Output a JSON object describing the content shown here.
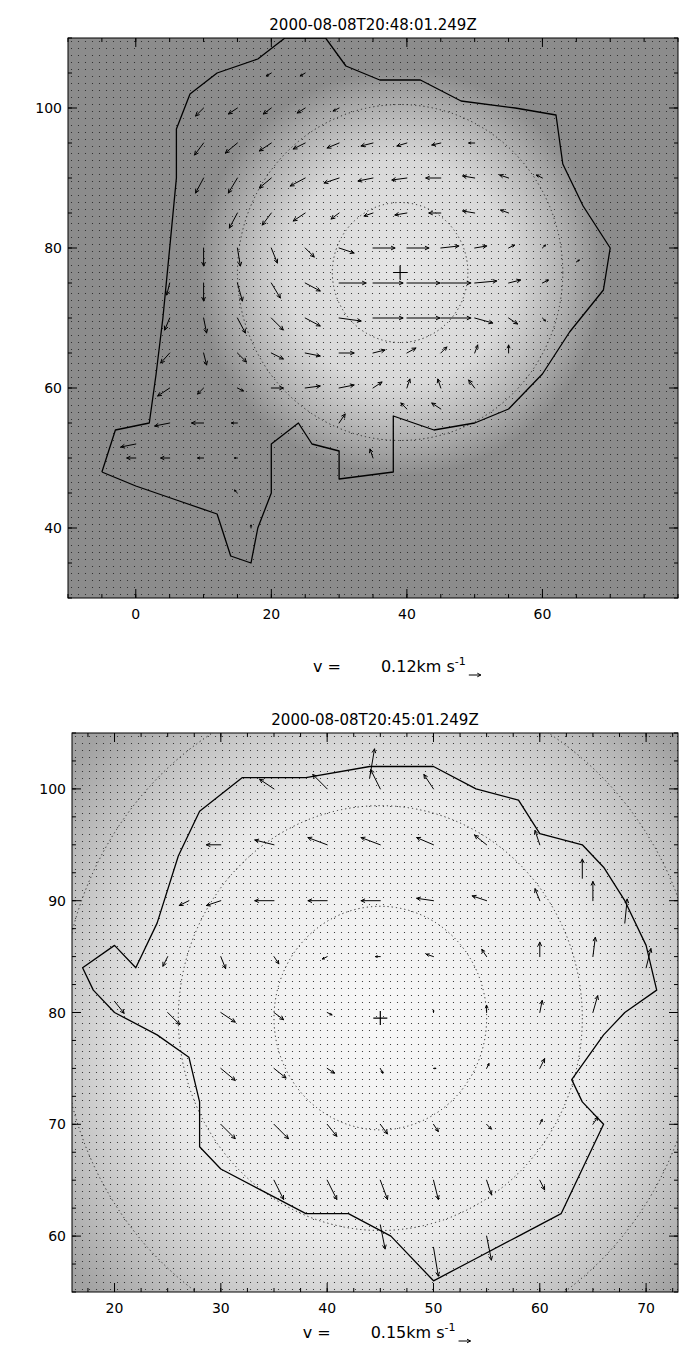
{
  "chart_data": [
    {
      "type": "quiver",
      "title": "2000-08-08T20:48:01.249Z",
      "xlim": [
        -10,
        80
      ],
      "ylim": [
        30,
        110
      ],
      "xticks": [
        0,
        20,
        40,
        60
      ],
      "yticks": [
        40,
        60,
        80,
        100
      ],
      "center": {
        "x": 39,
        "y": 76.5
      },
      "circle_radii": [
        10,
        24
      ],
      "boundary": {
        "x": [
          -5,
          -3,
          2,
          3,
          4,
          5,
          6,
          6,
          8,
          12,
          18,
          22,
          28,
          31,
          36,
          42,
          48,
          56,
          62,
          63,
          66,
          70,
          69,
          64,
          60,
          55,
          50,
          44,
          38,
          38,
          30,
          30,
          26,
          24,
          20,
          20,
          18,
          17,
          14,
          12,
          6,
          0,
          -5
        ],
        "y": [
          48,
          54,
          55,
          62,
          70,
          80,
          90,
          97,
          102,
          105,
          107,
          110,
          110,
          106,
          104,
          104,
          101,
          100,
          99,
          92,
          86,
          80,
          74,
          68,
          62,
          57,
          55,
          54,
          56,
          48,
          47,
          51,
          52,
          55,
          52,
          45,
          40,
          35,
          36,
          42,
          44,
          46,
          48
        ]
      },
      "vectors": {
        "x": [
          30,
          35,
          40,
          45,
          50,
          30,
          35,
          40,
          45,
          50,
          30,
          35,
          40,
          45,
          15,
          20,
          25,
          30,
          35,
          40,
          45,
          50,
          55,
          10,
          15,
          20,
          25,
          30,
          35,
          40,
          45,
          50,
          55,
          60,
          10,
          15,
          20,
          25,
          30,
          35,
          40,
          45,
          50,
          10,
          15,
          20,
          25,
          30,
          20,
          25,
          10,
          15,
          20,
          25,
          5,
          10,
          15,
          20,
          25,
          5,
          10,
          15,
          20,
          25,
          5,
          10,
          15,
          20,
          25,
          30,
          35,
          40,
          45,
          50,
          55,
          5,
          10,
          15,
          20,
          25,
          30,
          35,
          40,
          45,
          50,
          0,
          5,
          10,
          15,
          30,
          40,
          45,
          0,
          5,
          10,
          15,
          35,
          15,
          17,
          50,
          55,
          60,
          55,
          60,
          65,
          55,
          60
        ],
        "y": [
          75,
          75,
          75,
          75,
          75,
          70,
          70,
          70,
          70,
          70,
          80,
          80,
          80,
          80,
          85,
          85,
          85,
          85,
          85,
          85,
          85,
          85,
          85,
          90,
          90,
          90,
          90,
          90,
          90,
          90,
          90,
          90,
          90,
          90,
          95,
          95,
          95,
          95,
          95,
          95,
          95,
          95,
          95,
          100,
          100,
          100,
          100,
          100,
          105,
          105,
          80,
          80,
          80,
          80,
          75,
          75,
          75,
          75,
          75,
          70,
          70,
          70,
          70,
          70,
          65,
          65,
          65,
          65,
          65,
          65,
          65,
          65,
          65,
          65,
          65,
          60,
          60,
          60,
          60,
          60,
          60,
          60,
          60,
          60,
          60,
          52,
          55,
          55,
          55,
          55,
          57,
          57,
          50,
          50,
          50,
          50,
          50,
          45,
          40,
          80,
          80,
          80,
          75,
          75,
          78,
          70,
          70
        ],
        "u": [
          0.27,
          0.3,
          0.33,
          0.3,
          0.22,
          0.22,
          0.3,
          0.33,
          0.3,
          0.18,
          0.15,
          0.22,
          0.22,
          0.18,
          -0.08,
          -0.09,
          -0.12,
          -0.08,
          -0.09,
          -0.12,
          -0.12,
          -0.12,
          -0.08,
          -0.08,
          -0.09,
          -0.12,
          -0.15,
          -0.15,
          -0.15,
          -0.15,
          -0.15,
          -0.12,
          -0.09,
          -0.06,
          -0.09,
          -0.12,
          -0.12,
          -0.12,
          -0.12,
          -0.12,
          -0.1,
          -0.09,
          -0.06,
          -0.08,
          -0.09,
          -0.08,
          -0.08,
          -0.06,
          -0.05,
          -0.05,
          0,
          0.03,
          0.06,
          0.09,
          -0.03,
          0,
          0.05,
          0.09,
          0.15,
          -0.05,
          0.03,
          0.08,
          0.12,
          0.15,
          -0.09,
          0.03,
          0.09,
          0.12,
          0.15,
          0.15,
          0.12,
          0.09,
          0.06,
          0.03,
          0,
          -0.12,
          -0.06,
          0.06,
          0.12,
          0.15,
          0.15,
          0.09,
          0.03,
          -0.03,
          -0.06,
          -0.15,
          -0.15,
          -0.12,
          -0.06,
          0.06,
          -0.06,
          -0.09,
          -0.09,
          -0.09,
          -0.06,
          -0.03,
          -0.03,
          -0.03,
          0,
          0.12,
          0.06,
          0.03,
          0.12,
          0.06,
          0.03,
          0.09,
          0.03
        ],
        "v": [
          0,
          0,
          0,
          0,
          0.02,
          -0.03,
          0,
          0,
          0,
          -0.05,
          -0.05,
          0,
          0,
          0.02,
          -0.15,
          -0.12,
          -0.08,
          -0.06,
          -0.03,
          -0.02,
          0,
          0.02,
          0.03,
          -0.15,
          -0.15,
          -0.1,
          -0.08,
          -0.05,
          -0.03,
          -0.02,
          0,
          0.02,
          0.03,
          0.03,
          -0.12,
          -0.1,
          -0.08,
          -0.06,
          -0.05,
          -0.03,
          -0.03,
          -0.02,
          0,
          -0.08,
          -0.06,
          -0.06,
          -0.05,
          -0.03,
          -0.03,
          -0.03,
          -0.18,
          -0.18,
          -0.15,
          -0.09,
          -0.12,
          -0.18,
          -0.18,
          -0.15,
          -0.08,
          -0.12,
          -0.15,
          -0.15,
          -0.12,
          -0.08,
          -0.1,
          -0.12,
          -0.09,
          -0.06,
          -0.03,
          0,
          0.03,
          0.05,
          0.06,
          0.08,
          0.08,
          -0.08,
          -0.06,
          -0.03,
          0,
          0.02,
          0.03,
          0.06,
          0.09,
          0.09,
          0.08,
          -0.03,
          -0.03,
          0,
          0,
          0.09,
          0.06,
          0.06,
          0,
          0,
          0,
          0,
          0.09,
          0.03,
          0.03,
          0.02,
          0.03,
          0.03,
          0.03,
          0.03,
          0.02,
          -0.06,
          -0.03
        ]
      },
      "key": {
        "label": "v =",
        "value": 0.12,
        "unit": "km s",
        "unit_power": "-1"
      }
    },
    {
      "type": "quiver",
      "title": "2000-08-08T20:45:01.249Z",
      "xlim": [
        16,
        73
      ],
      "ylim": [
        55,
        105
      ],
      "xticks": [
        20,
        30,
        40,
        50,
        60,
        70
      ],
      "yticks": [
        60,
        70,
        80,
        90,
        100
      ],
      "center": {
        "x": 45,
        "y": 79.5
      },
      "circle_radii": [
        10,
        19,
        30
      ],
      "boundary": {
        "x": [
          18,
          17,
          20,
          22,
          24,
          26,
          28,
          32,
          38,
          44,
          50,
          54,
          58,
          60,
          64,
          66,
          68,
          70,
          71,
          68,
          66,
          63,
          64,
          66,
          64,
          62,
          58,
          54,
          50,
          46,
          42,
          38,
          34,
          30,
          28,
          28,
          27,
          24,
          20,
          18
        ],
        "y": [
          82,
          84,
          86,
          84,
          88,
          94,
          98,
          101,
          101,
          102,
          102,
          100,
          99,
          96,
          95,
          93,
          90,
          86,
          82,
          80,
          78,
          74,
          72,
          70,
          66,
          62,
          60,
          58,
          56,
          60,
          62,
          62,
          64,
          66,
          68,
          72,
          76,
          78,
          80,
          82
        ]
      },
      "vectors": {
        "x": [
          35,
          40,
          45,
          50,
          44,
          30,
          35,
          40,
          45,
          50,
          55,
          60,
          64,
          27,
          30,
          35,
          40,
          45,
          50,
          55,
          60,
          65,
          68,
          25,
          30,
          35,
          40,
          45,
          50,
          55,
          60,
          65,
          70,
          20,
          25,
          30,
          35,
          40,
          50,
          55,
          60,
          65,
          30,
          35,
          40,
          45,
          50,
          55,
          60,
          30,
          35,
          40,
          45,
          50,
          55,
          60,
          65,
          35,
          40,
          45,
          50,
          55,
          60,
          45,
          50,
          55
        ],
        "y": [
          100,
          100,
          100,
          100,
          101,
          95,
          95,
          95,
          95,
          95,
          95,
          95,
          92,
          90,
          90,
          90,
          90,
          90,
          90,
          90,
          90,
          90,
          88,
          85,
          85,
          85,
          85,
          85,
          85,
          85,
          85,
          85,
          84,
          81,
          80,
          80,
          80,
          80,
          80,
          80,
          80,
          80,
          75,
          75,
          75,
          75,
          75,
          75,
          75,
          70,
          70,
          70,
          70,
          70,
          70,
          70,
          70,
          65,
          65,
          65,
          65,
          65,
          65,
          61,
          59,
          60
        ],
        "u": [
          -0.18,
          -0.18,
          -0.12,
          -0.12,
          0.06,
          -0.18,
          -0.24,
          -0.24,
          -0.24,
          -0.21,
          -0.15,
          -0.06,
          0,
          -0.12,
          -0.18,
          -0.24,
          -0.24,
          -0.24,
          -0.21,
          -0.18,
          -0.06,
          0,
          0.03,
          -0.06,
          0.06,
          0.06,
          -0.06,
          -0.06,
          -0.09,
          -0.06,
          0,
          0.03,
          0.06,
          0.12,
          0.15,
          0.18,
          0.12,
          0.06,
          0,
          0,
          0.03,
          0.06,
          0.18,
          0.15,
          0.09,
          0.03,
          0.03,
          0.03,
          0.06,
          0.18,
          0.18,
          0.12,
          0.09,
          0.06,
          0.06,
          0.03,
          0.06,
          0.12,
          0.12,
          0.09,
          0.06,
          0.06,
          0.06,
          0.06,
          0.06,
          0.06
        ],
        "v": [
          0.12,
          0.18,
          0.24,
          0.18,
          0.36,
          0,
          0.06,
          0.09,
          0.09,
          0.09,
          0.12,
          0.18,
          0.24,
          -0.06,
          -0.06,
          0,
          0,
          0,
          0.03,
          0.06,
          0.15,
          0.24,
          0.3,
          -0.12,
          -0.15,
          -0.09,
          -0.03,
          0,
          0.03,
          0.09,
          0.18,
          0.24,
          0.24,
          -0.15,
          -0.15,
          -0.12,
          -0.09,
          -0.03,
          0.03,
          0.09,
          0.15,
          0.21,
          -0.15,
          -0.12,
          -0.06,
          -0.06,
          0,
          0.06,
          0.12,
          -0.18,
          -0.18,
          -0.15,
          -0.12,
          -0.09,
          -0.06,
          0.06,
          0.09,
          -0.24,
          -0.24,
          -0.24,
          -0.24,
          -0.18,
          -0.12,
          -0.3,
          -0.36,
          -0.3
        ]
      },
      "key": {
        "label": "v =",
        "value": 0.15,
        "unit": "km s",
        "unit_power": "-1"
      }
    }
  ]
}
